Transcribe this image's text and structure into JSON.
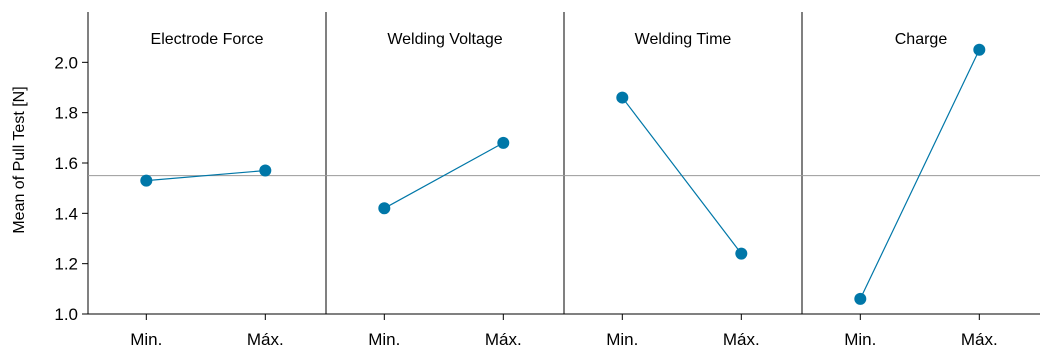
{
  "chart_data": {
    "type": "line",
    "ylabel": "Mean of Pull Test [N]",
    "ylim": [
      1.0,
      2.2
    ],
    "yticks": [
      1.0,
      1.2,
      1.4,
      1.6,
      1.8,
      2.0
    ],
    "ytick_labels": [
      "1.0",
      "1.2",
      "1.4",
      "1.6",
      "1.8",
      "2.0"
    ],
    "reference_mean": 1.55,
    "categories": [
      "Min.",
      "Máx."
    ],
    "panels": [
      {
        "title": "Electrode Force",
        "values": [
          1.53,
          1.57
        ]
      },
      {
        "title": "Welding Voltage",
        "values": [
          1.42,
          1.68
        ]
      },
      {
        "title": "Welding Time",
        "values": [
          1.86,
          1.24
        ]
      },
      {
        "title": "Charge",
        "values": [
          1.06,
          2.05
        ]
      }
    ],
    "colors": {
      "series": "#0077a8",
      "reference_line": "#999999",
      "axis": "#000000"
    }
  }
}
